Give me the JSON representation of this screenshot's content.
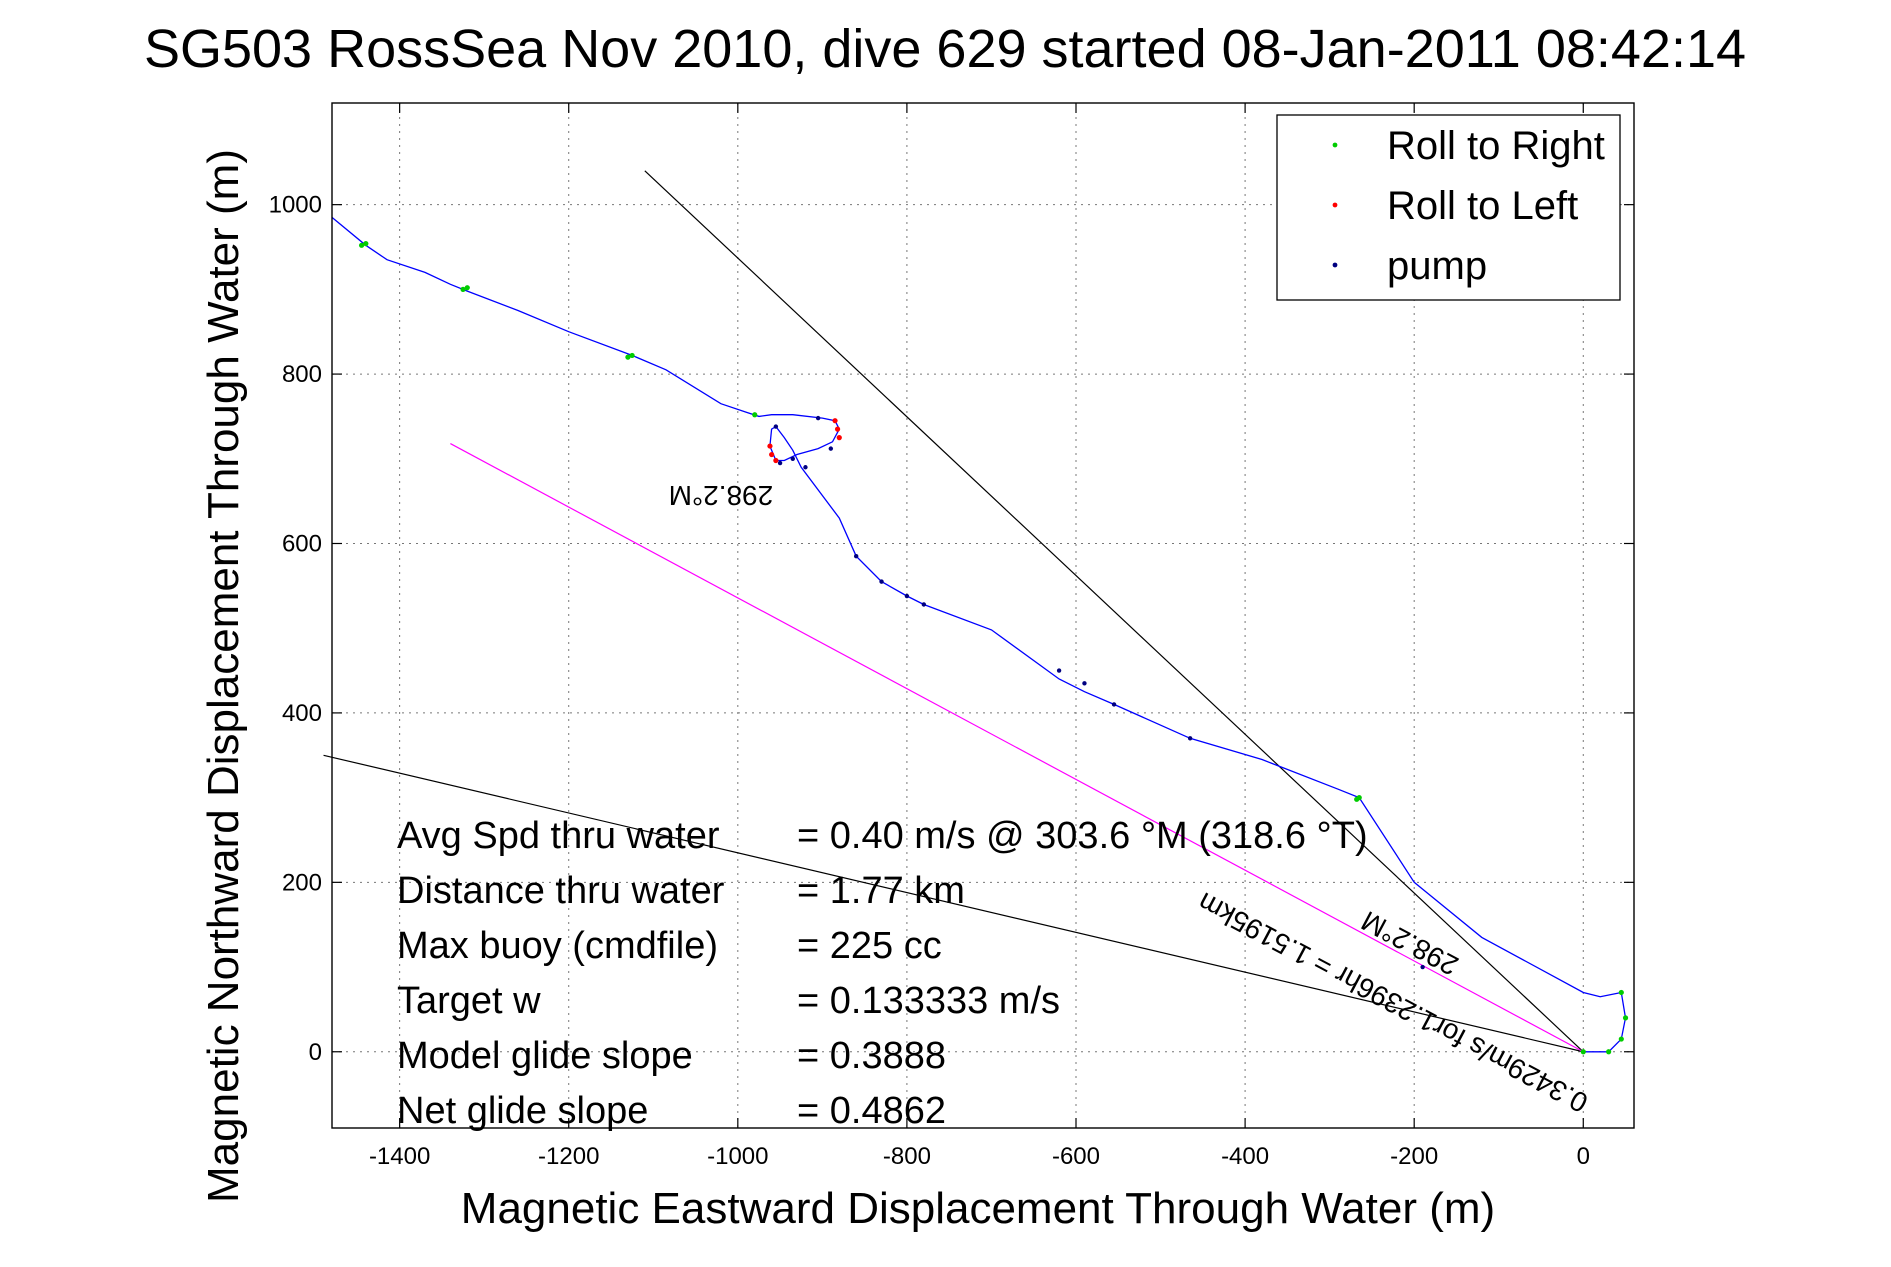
{
  "chart_data": {
    "type": "line",
    "title": "SG503 RossSea Nov 2010, dive 629 started 08-Jan-2011 08:42:14",
    "xlabel": "Magnetic Eastward Displacement Through Water (m)",
    "ylabel": "Magnetic Northward Displacement Through Water (m)",
    "xlim": [
      -1480,
      60
    ],
    "ylim": [
      -90,
      1120
    ],
    "xticks": [
      -1400,
      -1200,
      -1000,
      -800,
      -600,
      -400,
      -200,
      0
    ],
    "yticks": [
      0,
      200,
      400,
      600,
      800,
      1000
    ],
    "grid": true,
    "legend": {
      "position": "top-right",
      "entries": [
        {
          "label": "Roll to Right",
          "color": "#00cc00"
        },
        {
          "label": "Roll to Left",
          "color": "#ff0000"
        },
        {
          "label": "pump",
          "color": "#000080"
        }
      ]
    },
    "track": {
      "color": "#0000ff",
      "x": [
        0,
        30,
        45,
        50,
        45,
        20,
        0,
        -120,
        -200,
        -265,
        -290,
        -380,
        -465,
        -555,
        -590,
        -620,
        -700,
        -780,
        -800,
        -830,
        -860,
        -880,
        -925,
        -935,
        -945,
        -955,
        -960,
        -962,
        -955,
        -945,
        -930,
        -905,
        -888,
        -880,
        -885,
        -900,
        -935,
        -960,
        -975,
        -990,
        -1020,
        -1085,
        -1125,
        -1200,
        -1260,
        -1320,
        -1340,
        -1370,
        -1415,
        -1440,
        -1480
      ],
      "y": [
        0,
        0,
        15,
        40,
        70,
        65,
        70,
        135,
        200,
        300,
        310,
        345,
        370,
        410,
        425,
        440,
        498,
        528,
        538,
        555,
        585,
        630,
        690,
        710,
        725,
        738,
        735,
        715,
        698,
        698,
        705,
        712,
        720,
        735,
        745,
        748,
        752,
        752,
        750,
        755,
        765,
        805,
        822,
        850,
        875,
        898,
        906,
        920,
        935,
        952,
        985
      ]
    },
    "roll_right_points": {
      "x": [
        0,
        30,
        45,
        50,
        45,
        -265,
        -268,
        -980,
        -1125,
        -1130,
        -1320,
        -1325,
        -1440,
        -1445
      ],
      "y": [
        0,
        0,
        15,
        40,
        70,
        300,
        298,
        752,
        822,
        820,
        902,
        900,
        954,
        952
      ]
    },
    "roll_left_points": {
      "x": [
        -962,
        -960,
        -955,
        -880,
        -882,
        -885
      ],
      "y": [
        715,
        705,
        698,
        725,
        735,
        745
      ]
    },
    "pump_points": {
      "x": [
        -190,
        -465,
        -555,
        -590,
        -620,
        -780,
        -800,
        -830,
        -860,
        -920,
        -935,
        -950,
        -955,
        -890,
        -905
      ],
      "y": [
        100,
        370,
        410,
        435,
        450,
        528,
        538,
        555,
        585,
        690,
        700,
        695,
        738,
        712,
        748
      ]
    },
    "reference_lines": [
      {
        "color": "#000000",
        "x": [
          0,
          -1490
        ],
        "y": [
          0,
          350
        ]
      },
      {
        "color": "#000000",
        "x": [
          0,
          -1110
        ],
        "y": [
          0,
          1040
        ]
      },
      {
        "color": "#ff00ff",
        "x": [
          0,
          -1340
        ],
        "y": [
          0,
          718
        ]
      }
    ],
    "annotations": [
      {
        "text": "298.2°M",
        "x": -1020,
        "y": 668,
        "rotate": 180,
        "size": 28
      },
      {
        "text": "0.3429m/s for1.2396hr = 1.5195km",
        "x": -220,
        "y": 68,
        "rotate": 208,
        "size": 28
      },
      {
        "text": "298.2°M",
        "x": -200,
        "y": 138,
        "rotate": 208,
        "size": 28
      }
    ],
    "stats": [
      {
        "label": "Avg Spd thru water",
        "value": "=  0.40 m/s @ 303.6 °M (318.6 °T)"
      },
      {
        "label": "Distance thru water",
        "value": "=  1.77 km"
      },
      {
        "label": "Max buoy (cmdfile)",
        "value": "= 225 cc"
      },
      {
        "label": "Target w",
        "value": "= 0.133333 m/s"
      },
      {
        "label": "Model glide slope",
        "value": "= 0.3888"
      },
      {
        "label": "Net glide slope",
        "value": "= 0.4862"
      }
    ]
  }
}
